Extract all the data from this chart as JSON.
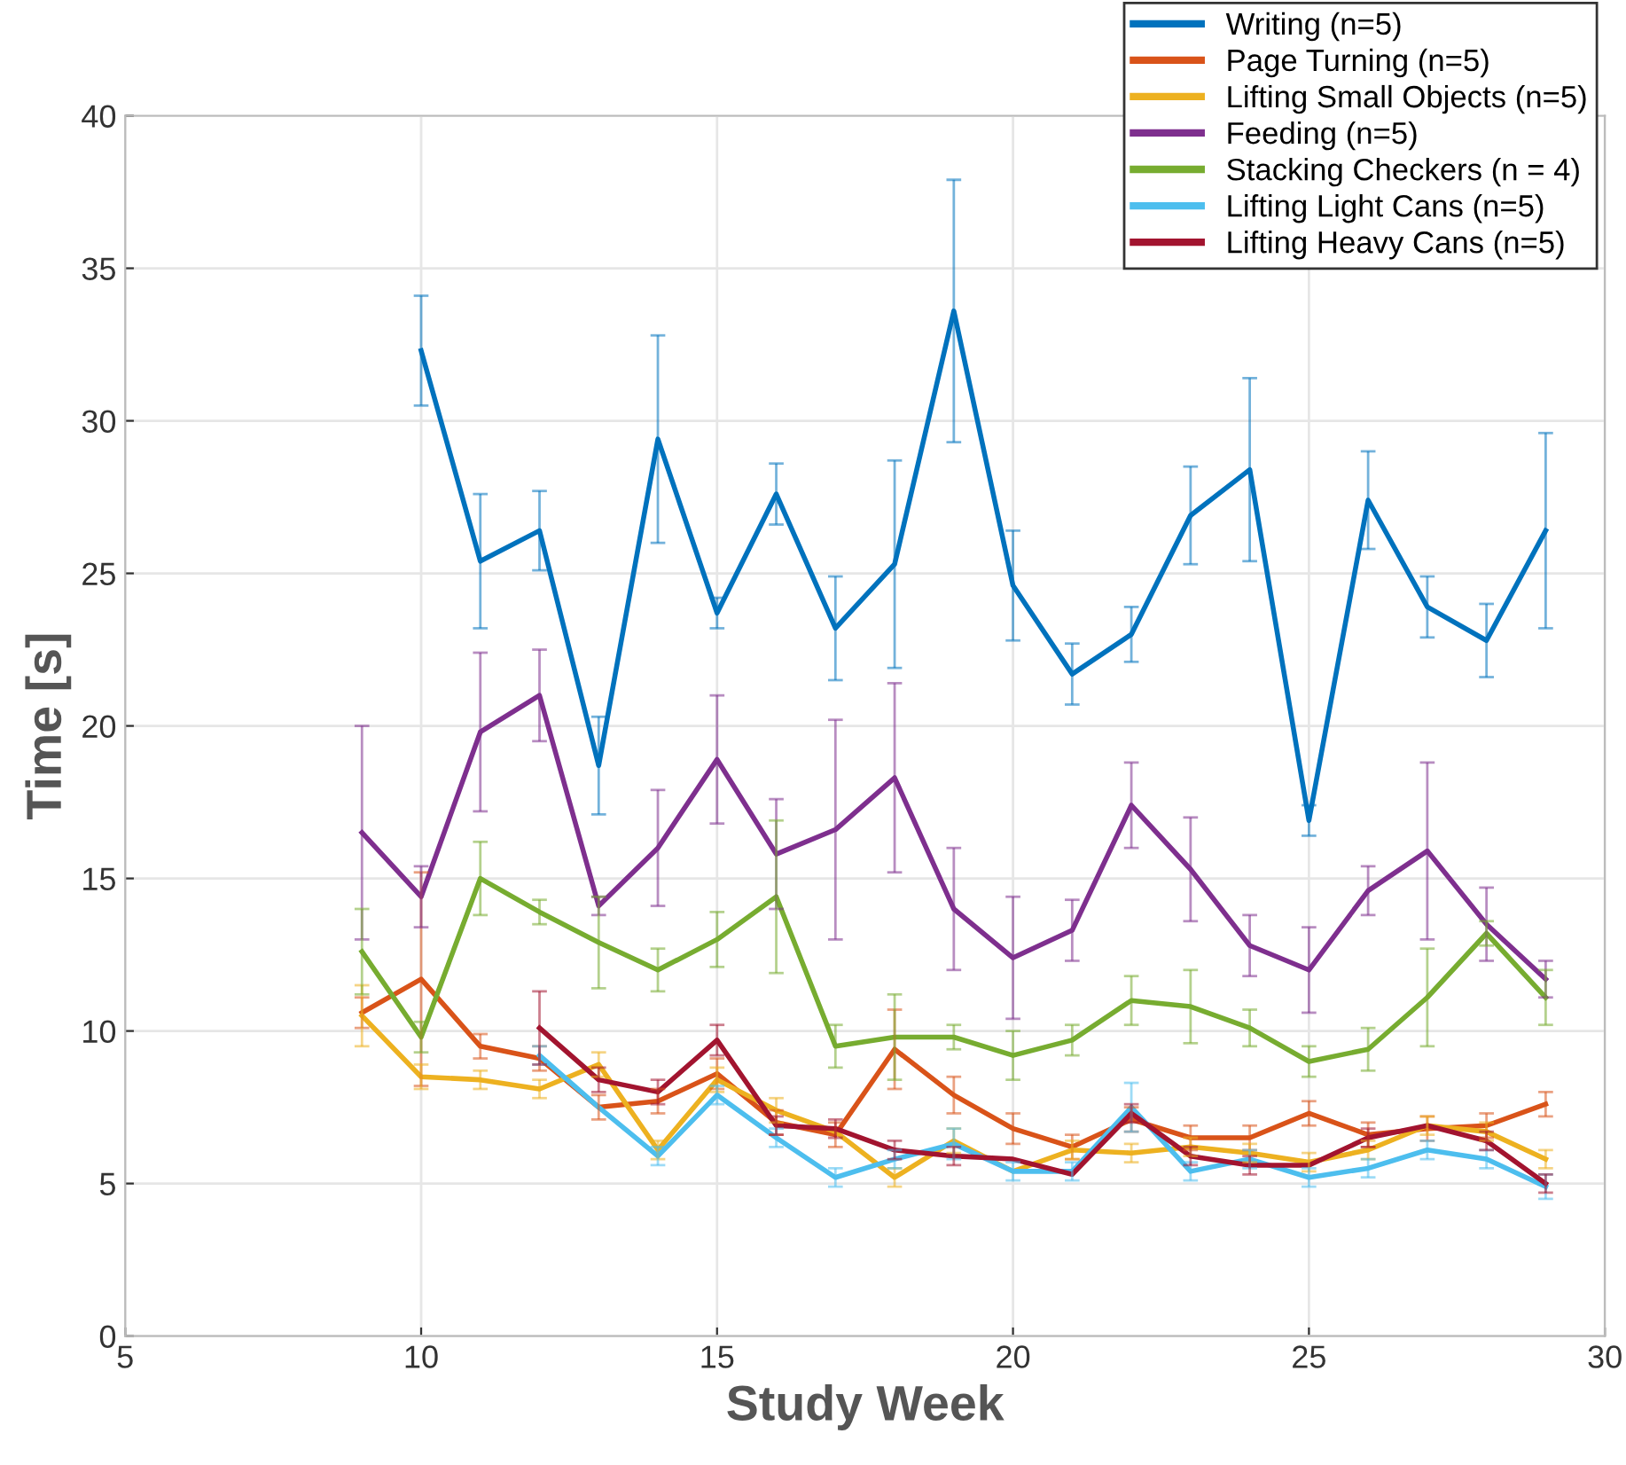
{
  "chart_data": {
    "type": "line",
    "xlabel": "Study Week",
    "ylabel": "Time [s]",
    "xlim": [
      5,
      30
    ],
    "ylim": [
      0,
      40
    ],
    "xticks": [
      5,
      10,
      15,
      20,
      25,
      30
    ],
    "yticks": [
      0,
      5,
      10,
      15,
      20,
      25,
      30,
      35,
      40
    ],
    "grid": true,
    "legend": "top right",
    "marker": "none",
    "line_style": "solid",
    "series": [
      {
        "name": "Writing (n=5)",
        "color": "#0072bd",
        "x": [
          10,
          11,
          12,
          13,
          14,
          15,
          16,
          17,
          18,
          19,
          20,
          21,
          22,
          23,
          24,
          25,
          26,
          27,
          28,
          29
        ],
        "values": [
          32.3,
          25.4,
          26.4,
          18.7,
          29.4,
          23.7,
          27.6,
          23.2,
          25.3,
          33.6,
          24.6,
          21.7,
          23.0,
          26.9,
          28.4,
          16.9,
          27.4,
          23.9,
          22.8,
          26.4
        ],
        "errors": [
          1.8,
          2.2,
          1.3,
          1.6,
          3.4,
          0.5,
          1.0,
          1.7,
          3.4,
          4.3,
          1.8,
          1.0,
          0.9,
          1.6,
          3.0,
          0.5,
          1.6,
          1.0,
          1.2,
          3.2
        ]
      },
      {
        "name": "Page Turning (n=5)",
        "color": "#d95319",
        "x": [
          9,
          10,
          11,
          12,
          13,
          14,
          15,
          16,
          17,
          18,
          19,
          20,
          21,
          22,
          23,
          24,
          25,
          26,
          27,
          28,
          29
        ],
        "values": [
          10.6,
          11.7,
          9.5,
          9.1,
          7.5,
          7.7,
          8.6,
          7.0,
          6.6,
          9.4,
          7.9,
          6.8,
          6.2,
          7.1,
          6.5,
          6.5,
          7.3,
          6.6,
          6.8,
          6.9,
          7.6
        ],
        "errors": [
          0.5,
          3.5,
          0.4,
          0.4,
          0.4,
          0.4,
          0.5,
          0.4,
          0.4,
          1.3,
          0.6,
          0.5,
          0.4,
          0.4,
          0.4,
          0.4,
          0.4,
          0.4,
          0.4,
          0.4,
          0.4
        ]
      },
      {
        "name": "Lifting Small Objects (n=5)",
        "color": "#edb120",
        "x": [
          9,
          10,
          11,
          12,
          13,
          14,
          15,
          16,
          17,
          18,
          19,
          20,
          21,
          22,
          23,
          24,
          25,
          26,
          27,
          28,
          29
        ],
        "values": [
          10.5,
          8.5,
          8.4,
          8.1,
          8.9,
          6.1,
          8.4,
          7.4,
          6.7,
          5.2,
          6.4,
          5.4,
          6.1,
          6.0,
          6.2,
          6.0,
          5.7,
          6.1,
          6.9,
          6.7,
          5.8
        ],
        "errors": [
          1.0,
          0.4,
          0.3,
          0.3,
          0.4,
          0.3,
          0.4,
          0.4,
          null,
          0.3,
          0.4,
          null,
          0.3,
          0.3,
          0.3,
          0.3,
          0.3,
          0.3,
          0.3,
          0.3,
          0.3
        ]
      },
      {
        "name": "Feeding (n=5)",
        "color": "#7e2f8e",
        "x": [
          9,
          10,
          11,
          12,
          13,
          14,
          15,
          16,
          17,
          18,
          19,
          20,
          21,
          22,
          23,
          24,
          25,
          26,
          27,
          28,
          29
        ],
        "values": [
          16.5,
          14.4,
          19.8,
          21.0,
          14.1,
          16.0,
          18.9,
          15.8,
          16.6,
          18.3,
          14.0,
          12.4,
          13.3,
          17.4,
          15.3,
          12.8,
          12.0,
          14.6,
          15.9,
          13.5,
          11.7
        ],
        "errors": [
          3.5,
          1.0,
          2.6,
          1.5,
          0.3,
          1.9,
          2.1,
          1.8,
          3.6,
          3.1,
          2.0,
          2.0,
          1.0,
          1.4,
          1.7,
          1.0,
          1.4,
          0.8,
          2.9,
          1.2,
          0.6
        ]
      },
      {
        "name": "Stacking Checkers (n = 4)",
        "color": "#77ac30",
        "x": [
          9,
          10,
          11,
          12,
          13,
          14,
          15,
          16,
          17,
          18,
          19,
          20,
          21,
          22,
          23,
          24,
          25,
          26,
          27,
          28,
          29
        ],
        "values": [
          12.6,
          9.8,
          15.0,
          13.9,
          12.9,
          12.0,
          13.0,
          14.4,
          9.5,
          9.8,
          9.8,
          9.2,
          9.7,
          11.0,
          10.8,
          10.1,
          9.0,
          9.4,
          11.1,
          13.2,
          11.1
        ],
        "errors": [
          1.4,
          0.5,
          1.2,
          0.4,
          1.5,
          0.7,
          0.9,
          2.5,
          0.7,
          1.4,
          0.4,
          0.8,
          0.5,
          0.8,
          1.2,
          0.6,
          0.5,
          0.7,
          1.6,
          0.4,
          0.9
        ]
      },
      {
        "name": "Lifting Light Cans (n=5)",
        "color": "#4dbeee",
        "x": [
          12,
          13,
          14,
          15,
          16,
          17,
          18,
          19,
          20,
          21,
          22,
          23,
          24,
          25,
          26,
          27,
          28,
          29
        ],
        "values": [
          9.2,
          7.5,
          5.9,
          7.9,
          6.5,
          5.2,
          5.8,
          6.3,
          5.4,
          5.4,
          7.5,
          5.4,
          5.8,
          5.2,
          5.5,
          6.1,
          5.8,
          4.9
        ],
        "errors": [
          0.3,
          null,
          0.3,
          0.3,
          0.3,
          0.3,
          0.3,
          0.5,
          0.3,
          0.3,
          0.8,
          0.3,
          0.3,
          0.3,
          0.3,
          0.3,
          0.3,
          0.4
        ]
      },
      {
        "name": "Lifting Heavy Cans (n=5)",
        "color": "#a2142f",
        "x": [
          12,
          13,
          14,
          15,
          16,
          17,
          18,
          19,
          20,
          21,
          22,
          23,
          24,
          25,
          26,
          27,
          28,
          29
        ],
        "values": [
          10.1,
          8.4,
          8.0,
          9.7,
          6.9,
          6.8,
          6.1,
          5.9,
          5.8,
          5.3,
          7.3,
          5.9,
          5.6,
          5.6,
          6.5,
          6.9,
          6.4,
          5.0
        ],
        "errors": [
          1.2,
          0.4,
          0.4,
          0.5,
          0.3,
          0.3,
          0.3,
          0.3,
          null,
          null,
          0.3,
          0.3,
          0.3,
          null,
          0.3,
          null,
          0.3,
          0.3
        ]
      }
    ]
  }
}
